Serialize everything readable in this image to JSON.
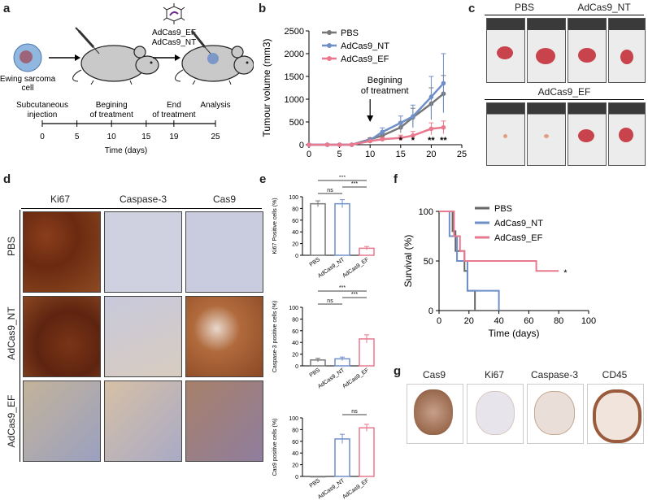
{
  "panels": {
    "a": "a",
    "b": "b",
    "c": "c",
    "d": "d",
    "e": "e",
    "f": "f",
    "g": "g"
  },
  "a": {
    "cell_label": "Ewing sarcoma cell",
    "virus1": "AdCas9_EF",
    "virus2": "AdCas9_NT",
    "steps": [
      "Subcutaneous injection",
      "Begining of treatment",
      "End of treatment",
      "Analysis"
    ],
    "ticks": [
      "0",
      "5",
      "10",
      "15",
      "19",
      "25"
    ],
    "xlabel": "Time (days)"
  },
  "b": {
    "chart_data": {
      "type": "line",
      "xlabel": "",
      "ylabel": "Tumour volume (mm3)",
      "ylim": [
        0,
        2500
      ],
      "xlim": [
        0,
        25
      ],
      "xticks": [
        0,
        5,
        10,
        15,
        20,
        25
      ],
      "yticks": [
        0,
        500,
        1000,
        1500,
        2000,
        2500
      ],
      "annotation": "Begining of treatment",
      "annotation_x": 10,
      "significance": [
        {
          "x": 15,
          "label": "*"
        },
        {
          "x": 17,
          "label": "*"
        },
        {
          "x": 20,
          "label": "**"
        },
        {
          "x": 22,
          "label": "**"
        }
      ],
      "series": [
        {
          "name": "PBS",
          "color": "#777777",
          "x": [
            0,
            3,
            5,
            7,
            10,
            12,
            15,
            17,
            20,
            22
          ],
          "y": [
            0,
            0,
            0,
            0,
            120,
            200,
            380,
            600,
            900,
            1120
          ],
          "err": [
            0,
            0,
            0,
            0,
            30,
            60,
            120,
            200,
            350,
            400
          ]
        },
        {
          "name": "AdCas9_NT",
          "color": "#6f8fc9",
          "x": [
            0,
            3,
            5,
            7,
            10,
            12,
            15,
            17,
            20,
            22
          ],
          "y": [
            0,
            0,
            0,
            0,
            100,
            280,
            480,
            620,
            1050,
            1350
          ],
          "err": [
            0,
            0,
            0,
            0,
            30,
            90,
            150,
            250,
            450,
            650
          ]
        },
        {
          "name": "AdCas9_EF",
          "color": "#e8798e",
          "x": [
            0,
            3,
            5,
            7,
            10,
            12,
            15,
            17,
            20,
            22
          ],
          "y": [
            0,
            0,
            0,
            0,
            80,
            120,
            150,
            200,
            350,
            380
          ],
          "err": [
            0,
            0,
            0,
            0,
            20,
            40,
            60,
            90,
            130,
            140
          ]
        }
      ]
    }
  },
  "c": {
    "top": [
      "PBS",
      "AdCas9_NT"
    ],
    "bottom": "AdCas9_EF"
  },
  "d": {
    "cols": [
      "Ki67",
      "Caspase-3",
      "Cas9"
    ],
    "rows": [
      "PBS",
      "AdCas9_NT",
      "AdCas9_EF"
    ]
  },
  "e": {
    "chart_data": [
      {
        "type": "bar",
        "categories": [
          "PBS",
          "AdCas9_NT",
          "AdCas9_EF"
        ],
        "values": [
          88,
          88,
          12
        ],
        "errors": [
          5,
          7,
          3
        ],
        "ylabel": "Ki67 Positive cells (%)",
        "ylim": [
          0,
          100
        ],
        "yticks": [
          0,
          20,
          40,
          60,
          80,
          100
        ],
        "sig": [
          {
            "a": 0,
            "b": 1,
            "label": "ns"
          },
          {
            "a": 1,
            "b": 2,
            "label": "***"
          },
          {
            "a": 0,
            "b": 2,
            "label": "***"
          }
        ]
      },
      {
        "type": "bar",
        "categories": [
          "PBS",
          "AdCas9_NT",
          "AdCas9_EF"
        ],
        "values": [
          10,
          12,
          46
        ],
        "errors": [
          3,
          3,
          7
        ],
        "ylabel": "Caspase-3 positive cells (%)",
        "ylim": [
          0,
          100
        ],
        "yticks": [
          0,
          20,
          40,
          60,
          80,
          100
        ],
        "sig": [
          {
            "a": 0,
            "b": 1,
            "label": "ns"
          },
          {
            "a": 1,
            "b": 2,
            "label": "***"
          },
          {
            "a": 0,
            "b": 2,
            "label": "***"
          }
        ]
      },
      {
        "type": "bar",
        "categories": [
          "PBS",
          "AdCas9_NT",
          "AdCas9_EF"
        ],
        "values": [
          0,
          64,
          83
        ],
        "errors": [
          0,
          8,
          6
        ],
        "ylabel": "Cas9 positive cells (%)",
        "ylim": [
          0,
          100
        ],
        "yticks": [
          0,
          20,
          40,
          60,
          80,
          100
        ],
        "sig": [
          {
            "a": 1,
            "b": 2,
            "label": "ns"
          }
        ]
      }
    ],
    "colors": [
      "#777777",
      "#6f8fc9",
      "#e8798e"
    ]
  },
  "f": {
    "chart_data": {
      "type": "line",
      "xlabel": "Time (days)",
      "ylabel": "Survival (%)",
      "xlim": [
        0,
        100
      ],
      "ylim": [
        0,
        100
      ],
      "xticks": [
        0,
        20,
        40,
        60,
        80,
        100
      ],
      "yticks": [
        0,
        50,
        100
      ],
      "mark": "*",
      "series": [
        {
          "name": "PBS",
          "color": "#666666",
          "x": [
            0,
            9,
            9,
            11,
            11,
            17,
            17,
            19,
            19,
            24,
            24
          ],
          "y": [
            100,
            100,
            80,
            80,
            60,
            60,
            40,
            40,
            20,
            20,
            0
          ]
        },
        {
          "name": "AdCas9_NT",
          "color": "#6f8fc9",
          "x": [
            0,
            7,
            7,
            12,
            12,
            19,
            19,
            40,
            40
          ],
          "y": [
            100,
            100,
            75,
            75,
            50,
            50,
            20,
            20,
            0
          ]
        },
        {
          "name": "AdCas9_EF",
          "color": "#e8798e",
          "x": [
            0,
            10,
            10,
            14,
            14,
            17,
            17,
            65,
            65,
            80
          ],
          "y": [
            100,
            100,
            75,
            75,
            60,
            60,
            50,
            50,
            40,
            40
          ]
        }
      ]
    }
  },
  "g": {
    "labels": [
      "Cas9",
      "Ki67",
      "Caspase-3",
      "CD45"
    ]
  }
}
